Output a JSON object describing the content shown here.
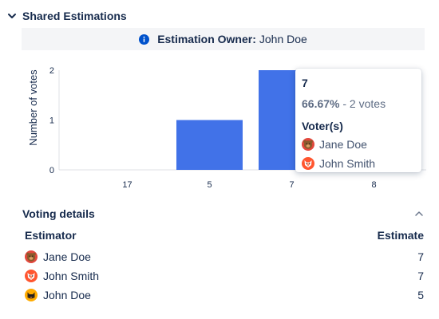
{
  "section": {
    "title": "Shared Estimations"
  },
  "owner": {
    "label": "Estimation Owner:",
    "name": "John Doe"
  },
  "chart_data": {
    "type": "bar",
    "categories": [
      "17",
      "5",
      "7",
      "8"
    ],
    "values": [
      0,
      1,
      2,
      0
    ],
    "title": "",
    "xlabel": "",
    "ylabel": "Number of votes",
    "ylim": [
      0,
      2
    ],
    "yticks": [
      "0",
      "1",
      "2"
    ],
    "bar_color": "#4172e8",
    "grid": false,
    "legend": "none"
  },
  "tooltip": {
    "estimate": "7",
    "percent": "66.67%",
    "votes_text": " - 2 votes",
    "voters_title": "Voter(s)",
    "voters": [
      {
        "name": "Jane Doe",
        "avatar": "bear-avatar-icon"
      },
      {
        "name": "John Smith",
        "avatar": "fox-avatar-icon"
      }
    ]
  },
  "details": {
    "title": "Voting details",
    "headers": {
      "estimator": "Estimator",
      "estimate": "Estimate"
    },
    "rows": [
      {
        "name": "Jane Doe",
        "estimate": "7",
        "avatar": "bear-avatar-icon"
      },
      {
        "name": "John Smith",
        "estimate": "7",
        "avatar": "fox-avatar-icon"
      },
      {
        "name": "John Doe",
        "estimate": "5",
        "avatar": "cat-avatar-icon"
      }
    ]
  },
  "colors": {
    "accent": "#4172e8",
    "info": "#0052cc",
    "text": "#172b4d",
    "muted": "#5e6c84",
    "banner_bg": "#f4f5f7"
  }
}
